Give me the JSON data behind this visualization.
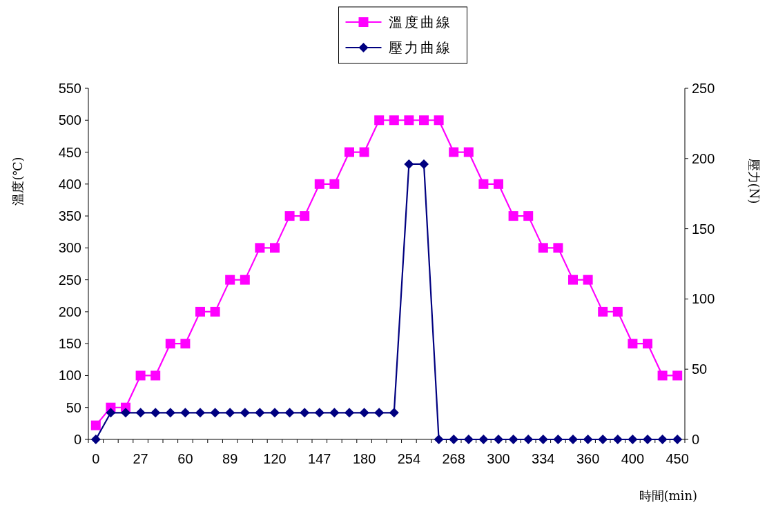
{
  "chart_data": {
    "type": "line",
    "categories": [
      "0",
      null,
      null,
      "27",
      null,
      null,
      "60",
      null,
      null,
      "89",
      null,
      null,
      "120",
      null,
      null,
      "147",
      null,
      null,
      "180",
      null,
      null,
      "254",
      null,
      null,
      "268",
      null,
      null,
      "300",
      null,
      null,
      "334",
      null,
      null,
      "360",
      null,
      null,
      "400",
      null,
      null,
      "450"
    ],
    "series": [
      {
        "name": "溫度曲線",
        "color": "#ff00ff",
        "marker": "square",
        "values": [
          22,
          50,
          50,
          100,
          100,
          150,
          150,
          200,
          200,
          250,
          250,
          300,
          300,
          350,
          350,
          400,
          400,
          450,
          450,
          500,
          500,
          500,
          500,
          500,
          450,
          450,
          400,
          400,
          350,
          350,
          300,
          300,
          250,
          250,
          200,
          200,
          150,
          150,
          100,
          100
        ]
      },
      {
        "name": "壓力曲線",
        "color": "#000080",
        "marker": "diamond",
        "axis": "y2",
        "values": [
          0,
          19,
          19,
          19,
          19,
          19,
          19,
          19,
          19,
          19,
          19,
          19,
          19,
          19,
          19,
          19,
          19,
          19,
          19,
          19,
          19,
          196,
          196,
          0,
          0,
          0,
          0,
          0,
          0,
          0,
          0,
          0,
          0,
          0,
          0,
          0,
          0,
          0,
          0,
          0
        ]
      }
    ],
    "xlabel": "時間(min)",
    "ylabel": "溫度(℃)",
    "y2label": "壓力(N)",
    "ylim": [
      0,
      550
    ],
    "yticks": [
      0,
      50,
      100,
      150,
      200,
      250,
      300,
      350,
      400,
      450,
      500,
      550
    ],
    "y2lim": [
      0,
      250
    ],
    "y2ticks": [
      0,
      50,
      100,
      150,
      200,
      250
    ],
    "legend": "top"
  }
}
